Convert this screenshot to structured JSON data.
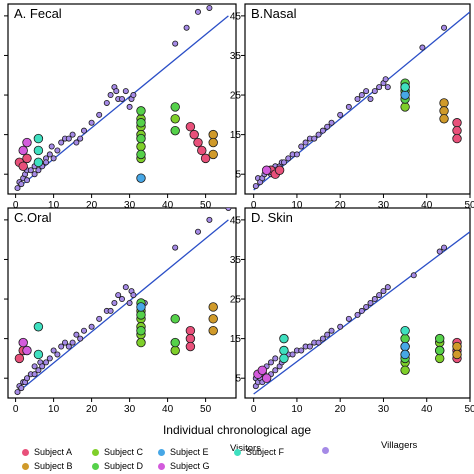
{
  "figure": {
    "xlabel": "Individual chronological age",
    "legend_headers": {
      "visitors": "Visitors",
      "villagers": "Villagers"
    }
  },
  "legend": [
    {
      "label": "Subject A",
      "color": "#e8507a"
    },
    {
      "label": "Subject C",
      "color": "#7fcf2a"
    },
    {
      "label": "Subject E",
      "color": "#47a7e6"
    },
    {
      "label": "Subject F",
      "color": "#3fe0c0"
    },
    {
      "label": "",
      "color": "#a58ae6"
    },
    {
      "label": "Subject B",
      "color": "#d09a2a"
    },
    {
      "label": "Subject D",
      "color": "#55d14a"
    },
    {
      "label": "Subject G",
      "color": "#d35bdc"
    }
  ],
  "colors": {
    "villagers": "#a58ae6",
    "regression_line": "#2b4fc7",
    "A": "#e8507a",
    "B": "#d09a2a",
    "C": "#7fcf2a",
    "D": "#55d14a",
    "E": "#47a7e6",
    "F": "#3fe0c0",
    "G": "#d35bdc"
  },
  "chart_data": [
    {
      "type": "scatter",
      "title": "A. Fecal",
      "xticks": [
        0,
        10,
        20,
        30,
        40,
        50
      ],
      "yticks": [
        5,
        15,
        25,
        35,
        45
      ],
      "show_right_yticks": false,
      "xlim": [
        -2,
        58
      ],
      "ylim": [
        0,
        48
      ],
      "series": [
        {
          "subject": "villagers",
          "x": [
            0.5,
            1,
            1.5,
            2,
            2.5,
            3,
            3,
            4,
            5,
            5,
            6,
            6.5,
            7,
            8,
            8,
            9,
            9.5,
            10,
            11,
            12,
            13,
            14,
            15,
            16,
            17,
            18,
            20,
            22,
            24,
            25,
            26,
            26.5,
            27,
            28,
            29,
            30,
            30.5,
            31,
            42,
            45,
            48,
            51
          ],
          "y": [
            1.5,
            3,
            2.5,
            4,
            5,
            6,
            3.5,
            6,
            7,
            5,
            6,
            8,
            7,
            9,
            8,
            10,
            12,
            9,
            11,
            13,
            14,
            14,
            15,
            13,
            14,
            16,
            18,
            20,
            23,
            25,
            27,
            26,
            24,
            24,
            26,
            22,
            24,
            25,
            38,
            42,
            46,
            47
          ]
        },
        {
          "subject": "A",
          "x": [
            1,
            2,
            3,
            46,
            47,
            48,
            49,
            50
          ],
          "y": [
            8,
            7,
            9,
            17,
            15,
            13,
            11,
            9
          ]
        },
        {
          "subject": "B",
          "x": [
            52,
            52,
            52
          ],
          "y": [
            15,
            13,
            10
          ]
        },
        {
          "subject": "C",
          "x": [
            33,
            33,
            33,
            33,
            33,
            42
          ],
          "y": [
            19,
            17,
            15,
            12,
            9,
            19
          ]
        },
        {
          "subject": "D",
          "x": [
            33,
            33,
            33,
            33,
            42,
            42
          ],
          "y": [
            21,
            18,
            14,
            10,
            22,
            16
          ]
        },
        {
          "subject": "E",
          "x": [
            33
          ],
          "y": [
            4
          ]
        },
        {
          "subject": "F",
          "x": [
            6,
            6,
            6
          ],
          "y": [
            14,
            11,
            8
          ]
        },
        {
          "subject": "G",
          "x": [
            2,
            3
          ],
          "y": [
            11,
            13
          ]
        }
      ],
      "regression": {
        "x": [
          0,
          56
        ],
        "y": [
          1,
          45
        ]
      }
    },
    {
      "type": "scatter",
      "title": "B.Nasal",
      "xticks": [
        0,
        10,
        20,
        30,
        40,
        50
      ],
      "yticks": [
        5,
        15,
        25,
        35,
        45
      ],
      "show_right_yticks": true,
      "xlim": [
        -2,
        50
      ],
      "ylim": [
        0,
        48
      ],
      "series": [
        {
          "subject": "villagers",
          "x": [
            0.5,
            1,
            1.5,
            2,
            2.5,
            3,
            4,
            5,
            5,
            6,
            6.5,
            7,
            8,
            9,
            10,
            11,
            12,
            13,
            14,
            15,
            16,
            17,
            18,
            20,
            22,
            24,
            25,
            26,
            27,
            28,
            29,
            30,
            30.5,
            31,
            39,
            44
          ],
          "y": [
            2,
            4,
            3,
            4,
            5,
            6,
            5,
            7,
            6,
            7,
            8,
            8,
            9,
            10,
            10,
            12,
            13,
            14,
            14,
            15,
            16,
            17,
            18,
            20,
            22,
            24,
            25,
            26,
            24,
            26,
            27,
            28,
            29,
            27,
            37,
            42
          ]
        },
        {
          "subject": "A",
          "x": [
            4,
            5,
            6,
            47,
            47,
            47
          ],
          "y": [
            6,
            5,
            6,
            18,
            16,
            14
          ]
        },
        {
          "subject": "B",
          "x": [
            44,
            44,
            44
          ],
          "y": [
            23,
            21,
            19
          ]
        },
        {
          "subject": "C",
          "x": [
            35
          ],
          "y": [
            22
          ]
        },
        {
          "subject": "D",
          "x": [
            35,
            35,
            35
          ],
          "y": [
            28,
            26,
            24
          ]
        },
        {
          "subject": "E",
          "x": [
            35,
            35
          ],
          "y": [
            27,
            25
          ]
        },
        {
          "subject": "F",
          "x": [
            35
          ],
          "y": [
            27
          ]
        },
        {
          "subject": "G",
          "x": [
            3
          ],
          "y": [
            6
          ]
        }
      ],
      "regression": {
        "x": [
          0,
          50
        ],
        "y": [
          1,
          46
        ]
      }
    },
    {
      "type": "scatter",
      "title": "C.Oral",
      "xticks": [
        0,
        10,
        20,
        30,
        40,
        50
      ],
      "yticks": [
        5,
        15,
        25,
        35,
        45
      ],
      "show_right_yticks": false,
      "xlim": [
        -2,
        58
      ],
      "ylim": [
        0,
        48
      ],
      "series": [
        {
          "subject": "villagers",
          "x": [
            0.5,
            1,
            1.5,
            2,
            2.5,
            3,
            4,
            5,
            5,
            6,
            6.5,
            7,
            8,
            9,
            10,
            11,
            12,
            13,
            14,
            15,
            16,
            17,
            18,
            20,
            22,
            24,
            25,
            26,
            27,
            28,
            29,
            30,
            30.5,
            31,
            34,
            42,
            48,
            51,
            56
          ],
          "y": [
            1.5,
            3,
            2.5,
            4,
            4,
            5,
            6,
            6,
            8,
            7,
            9,
            8,
            9,
            10,
            12,
            11,
            13,
            14,
            13,
            14,
            16,
            15,
            17,
            18,
            20,
            22,
            22,
            24,
            26,
            25,
            28,
            24,
            27,
            26,
            24,
            38,
            42,
            45,
            48
          ]
        },
        {
          "subject": "A",
          "x": [
            1,
            2,
            46,
            46,
            46
          ],
          "y": [
            10,
            12,
            17,
            15,
            13
          ]
        },
        {
          "subject": "B",
          "x": [
            52,
            52,
            52
          ],
          "y": [
            23,
            20,
            17
          ]
        },
        {
          "subject": "C",
          "x": [
            33,
            33,
            33,
            33,
            33,
            42
          ],
          "y": [
            22,
            20,
            18,
            16,
            14,
            12
          ]
        },
        {
          "subject": "D",
          "x": [
            33,
            33,
            33,
            42,
            42
          ],
          "y": [
            24,
            21,
            17,
            14,
            20
          ]
        },
        {
          "subject": "E",
          "x": [
            33
          ],
          "y": [
            23
          ]
        },
        {
          "subject": "F",
          "x": [
            6,
            6
          ],
          "y": [
            18,
            11
          ]
        },
        {
          "subject": "G",
          "x": [
            2,
            3
          ],
          "y": [
            14,
            12
          ]
        }
      ],
      "regression": {
        "x": [
          0,
          56
        ],
        "y": [
          1,
          45
        ]
      }
    },
    {
      "type": "scatter",
      "title": "D. Skin",
      "xticks": [
        0,
        10,
        20,
        30,
        40,
        50
      ],
      "yticks": [
        5,
        15,
        25,
        35,
        45
      ],
      "show_right_yticks": true,
      "xlim": [
        -2,
        50
      ],
      "ylim": [
        0,
        48
      ],
      "series": [
        {
          "subject": "villagers",
          "x": [
            0.5,
            0.5,
            1,
            1,
            1.5,
            2,
            2,
            2.5,
            3,
            3,
            4,
            4,
            5,
            5,
            6,
            6.5,
            7,
            8,
            9,
            10,
            11,
            12,
            13,
            14,
            15,
            16,
            17,
            18,
            20,
            22,
            24,
            25,
            26,
            27,
            28,
            29,
            30,
            31,
            37,
            43,
            44
          ],
          "y": [
            3,
            5,
            4,
            6,
            5,
            4,
            7,
            6,
            5,
            8,
            6,
            9,
            7,
            10,
            8,
            9,
            10,
            11,
            11,
            12,
            12,
            13,
            13,
            14,
            14,
            15,
            16,
            17,
            18,
            20,
            21,
            22,
            23,
            24,
            25,
            26,
            27,
            28,
            31,
            37,
            38
          ]
        },
        {
          "subject": "A",
          "x": [
            47,
            47,
            47
          ],
          "y": [
            14,
            12,
            10
          ]
        },
        {
          "subject": "B",
          "x": [
            47,
            47
          ],
          "y": [
            13,
            11
          ]
        },
        {
          "subject": "C",
          "x": [
            35,
            35,
            35,
            35,
            43,
            43,
            43
          ],
          "y": [
            13,
            11,
            9,
            7,
            14,
            12,
            10
          ]
        },
        {
          "subject": "D",
          "x": [
            35,
            35,
            43,
            43
          ],
          "y": [
            15,
            10,
            15,
            12
          ]
        },
        {
          "subject": "E",
          "x": [
            35,
            35
          ],
          "y": [
            13,
            11
          ]
        },
        {
          "subject": "F",
          "x": [
            7,
            7,
            7,
            35
          ],
          "y": [
            15,
            12,
            10,
            17
          ]
        },
        {
          "subject": "G",
          "x": [
            1,
            2,
            3
          ],
          "y": [
            6,
            7,
            5
          ]
        }
      ],
      "regression": {
        "x": [
          0,
          50
        ],
        "y": [
          1,
          42
        ]
      }
    }
  ]
}
